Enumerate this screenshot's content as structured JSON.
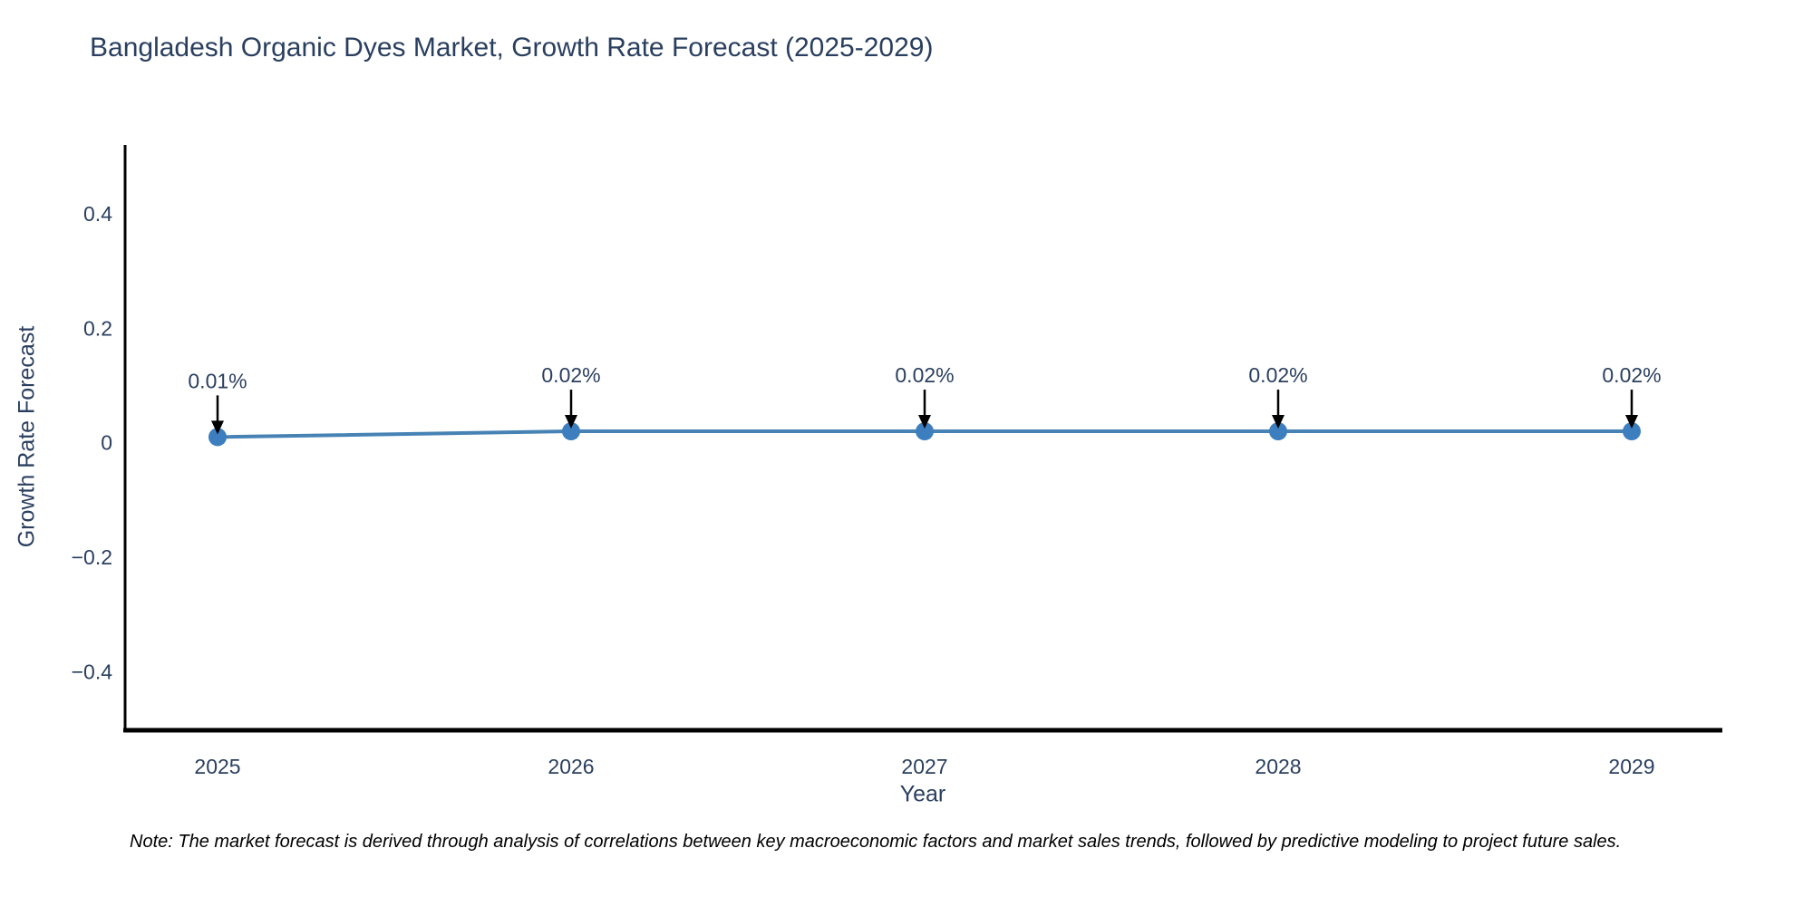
{
  "header": {
    "title": "Bangladesh Organic Dyes Market, Growth Rate Forecast (2025-2029)"
  },
  "footnote": "Note: The market forecast is derived through analysis of correlations between key macroeconomic factors and market sales trends, followed by predictive modeling to project future sales.",
  "chart_data": {
    "type": "line",
    "title": "Bangladesh Organic Dyes Market, Growth Rate Forecast (2025-2029)",
    "xlabel": "Year",
    "ylabel": "Growth Rate Forecast",
    "x": [
      2025,
      2026,
      2027,
      2028,
      2029
    ],
    "series": [
      {
        "name": "Growth Rate Forecast",
        "values": [
          0.01,
          0.02,
          0.02,
          0.02,
          0.02
        ],
        "point_labels": [
          "0.01%",
          "0.02%",
          "0.02%",
          "0.02%",
          "0.02%"
        ]
      }
    ],
    "yticks": [
      0.4,
      0.2,
      0,
      -0.2,
      -0.4
    ],
    "ytick_labels": [
      "0.4",
      "0.2",
      "0",
      "−0.2",
      "−0.4"
    ],
    "xtick_labels": [
      "2025",
      "2026",
      "2027",
      "2028",
      "2029"
    ],
    "ylim": [
      -0.5,
      0.52
    ],
    "grid": false,
    "legend_position": "none",
    "annotations_have_arrows": true,
    "colors": {
      "line": "#4682b4",
      "marker": "#3d7ebf",
      "axis_line": "#000000",
      "tick_text": "#2a3f5f",
      "title_text": "#2a3f5f",
      "arrow": "#000000",
      "note_text": "#000000",
      "background": "#ffffff"
    }
  }
}
